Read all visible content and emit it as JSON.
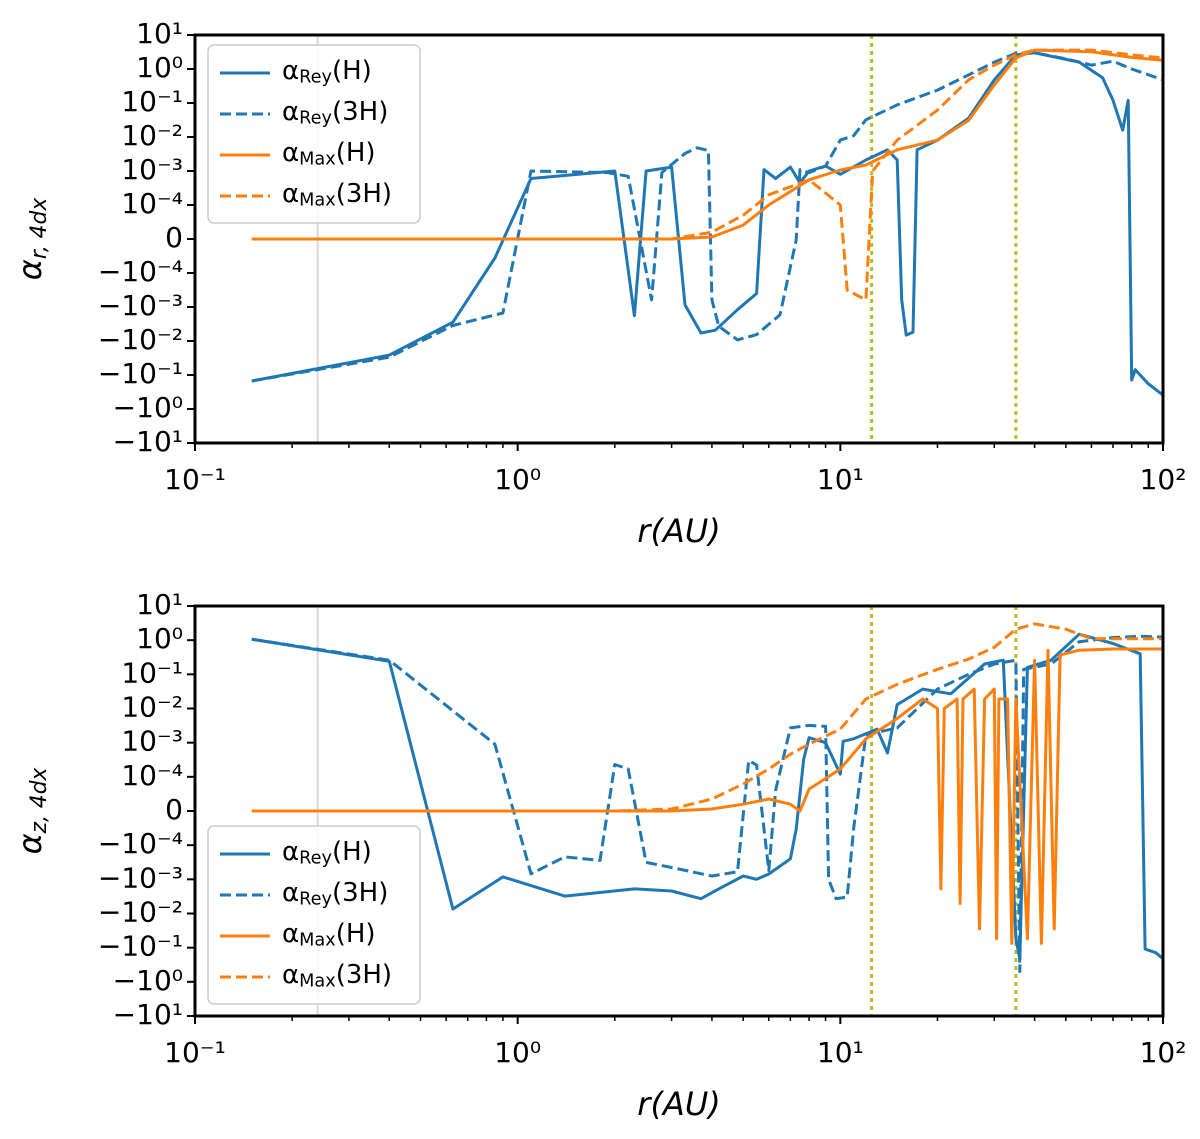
{
  "chart_data": [
    {
      "type": "line",
      "xlabel": "r(AU)",
      "ylabel": "αr, 4dx",
      "xscale": "log",
      "yscale": "symlog",
      "linthresh": 0.0001,
      "xlim": [
        0.1,
        100
      ],
      "ylim": [
        -10,
        10
      ],
      "xticks": [
        {
          "value": 0.1,
          "label": "10⁻¹"
        },
        {
          "value": 1,
          "label": "10⁰"
        },
        {
          "value": 10,
          "label": "10¹"
        },
        {
          "value": 100,
          "label": "10²"
        }
      ],
      "yticks": [
        {
          "value": 10,
          "label": "10¹"
        },
        {
          "value": 1,
          "label": "10⁰"
        },
        {
          "value": 0.1,
          "label": "10⁻¹"
        },
        {
          "value": 0.01,
          "label": "10⁻²"
        },
        {
          "value": 0.001,
          "label": "10⁻³"
        },
        {
          "value": 0.0001,
          "label": "10⁻⁴"
        },
        0,
        {
          "value": -0.0001,
          "label": "−10⁻⁴"
        },
        {
          "value": -0.001,
          "label": "−10⁻³"
        },
        {
          "value": -0.01,
          "label": "−10⁻²"
        },
        {
          "value": -0.1,
          "label": "−10⁻¹"
        },
        {
          "value": -1,
          "label": "−10⁰"
        },
        {
          "value": -10,
          "label": "−10¹"
        }
      ],
      "legend": "upper left",
      "vlines": [
        {
          "x": 0.24,
          "color": "#d9d9d9",
          "dash": false
        },
        {
          "x": 12.5,
          "color": "#bcbd22",
          "dash": true
        },
        {
          "x": 35,
          "color": "#bcbd22",
          "dash": true
        }
      ],
      "series": [
        {
          "name": "αRey(H)",
          "color": "#1f77b4",
          "dash": false,
          "x": [
            0.15,
            0.4,
            0.63,
            0.85,
            1.1,
            2.0,
            2.3,
            2.5,
            3.0,
            3.3,
            3.7,
            4.1,
            4.8,
            5.5,
            5.8,
            6.3,
            7,
            7.5,
            8,
            9,
            10,
            12,
            14,
            15,
            15.5,
            16,
            16.8,
            17.3,
            20,
            25,
            30,
            35,
            40,
            55,
            65,
            70,
            75,
            78,
            80,
            82,
            90,
            100
          ],
          "values": [
            -0.15,
            -0.026,
            -0.0028,
            -5.6e-05,
            0.0006,
            0.001,
            -0.0018,
            0.001,
            0.0013,
            -0.00087,
            -0.0058,
            -0.0048,
            -0.0012,
            -0.0004,
            0.0011,
            0.0006,
            0.0013,
            0.00045,
            0.001,
            0.0014,
            0.0008,
            0.0021,
            0.0042,
            0.0021,
            -0.00062,
            -0.0067,
            -0.0055,
            0.0042,
            0.0081,
            0.036,
            0.48,
            2.6,
            3,
            1.6,
            0.55,
            0.12,
            0.016,
            0.12,
            -0.14,
            -0.07,
            -0.18,
            -0.39
          ]
        },
        {
          "name": "αRey(3H)",
          "color": "#1f77b4",
          "dash": true,
          "x": [
            0.15,
            0.4,
            0.63,
            0.9,
            1.1,
            1.9,
            2.2,
            2.6,
            2.8,
            3.3,
            3.6,
            3.9,
            4.0,
            4.2,
            4.8,
            5.5,
            6.5,
            7.3,
            7.5,
            8,
            9,
            10,
            11,
            12,
            15,
            20,
            25,
            30,
            35,
            40,
            50,
            60,
            70,
            80,
            100
          ],
          "values": [
            -0.15,
            -0.03,
            -0.0035,
            -0.0015,
            0.001,
            0.0009,
            0.0007,
            -0.00062,
            0.0009,
            0.0033,
            0.0048,
            0.004,
            -0.00062,
            -0.0037,
            -0.0093,
            -0.0065,
            -0.0017,
            -3e-06,
            0.0011,
            0.0009,
            0.0014,
            0.0081,
            0.011,
            0.032,
            0.088,
            0.24,
            0.67,
            1.6,
            2.9,
            3,
            2,
            1.3,
            1.7,
            1,
            0.48
          ]
        },
        {
          "name": "αMax(H)",
          "color": "#ff7f0e",
          "dash": false,
          "x": [
            0.15,
            1,
            2,
            3,
            4,
            5,
            6,
            8,
            10,
            12,
            15,
            20,
            25,
            30,
            35,
            40,
            60,
            80,
            100
          ],
          "values": [
            0,
            0,
            0,
            0,
            6e-06,
            4.1e-05,
            0.0001,
            0.00055,
            0.00107,
            0.0015,
            0.0042,
            0.0081,
            0.031,
            0.34,
            2.1,
            3.6,
            3.2,
            2.2,
            1.8
          ]
        },
        {
          "name": "αMax(3H)",
          "color": "#ff7f0e",
          "dash": true,
          "x": [
            0.15,
            1,
            2,
            3,
            4,
            5,
            6,
            8,
            10,
            10.5,
            11,
            12,
            12.6,
            15,
            20,
            25,
            30,
            35,
            40,
            60,
            80,
            100
          ],
          "values": [
            0,
            0,
            0,
            0,
            2e-05,
            7e-05,
            0.0002,
            0.00055,
            0.0001,
            -0.00032,
            -0.0004,
            -0.00062,
            0.001,
            0.0081,
            0.062,
            0.48,
            1.3,
            2.6,
            3.6,
            3.6,
            2.6,
            2.1
          ]
        }
      ]
    },
    {
      "type": "line",
      "xlabel": "r(AU)",
      "ylabel": "αz, 4dx",
      "xscale": "log",
      "yscale": "symlog",
      "linthresh": 0.0001,
      "xlim": [
        0.1,
        100
      ],
      "ylim": [
        -10,
        10
      ],
      "xticks": [
        {
          "value": 0.1,
          "label": "10⁻¹"
        },
        {
          "value": 1,
          "label": "10⁰"
        },
        {
          "value": 10,
          "label": "10¹"
        },
        {
          "value": 100,
          "label": "10²"
        }
      ],
      "yticks": [
        {
          "value": 10,
          "label": "10¹"
        },
        {
          "value": 1,
          "label": "10⁰"
        },
        {
          "value": 0.1,
          "label": "10⁻¹"
        },
        {
          "value": 0.01,
          "label": "10⁻²"
        },
        {
          "value": 0.001,
          "label": "10⁻³"
        },
        {
          "value": 0.0001,
          "label": "10⁻⁴"
        },
        0,
        {
          "value": -0.0001,
          "label": "−10⁻⁴"
        },
        {
          "value": -0.001,
          "label": "−10⁻³"
        },
        {
          "value": -0.01,
          "label": "−10⁻²"
        },
        {
          "value": -0.1,
          "label": "−10⁻¹"
        },
        {
          "value": -1,
          "label": "−10⁰"
        },
        {
          "value": -10,
          "label": "−10¹"
        }
      ],
      "legend": "lower left",
      "vlines": [
        {
          "x": 0.24,
          "color": "#d9d9d9",
          "dash": false
        },
        {
          "x": 12.5,
          "color": "#bcbd22",
          "dash": true
        },
        {
          "x": 35,
          "color": "#bcbd22",
          "dash": true
        }
      ],
      "series": [
        {
          "name": "αRey(H)",
          "color": "#1f77b4",
          "dash": false,
          "x": [
            0.15,
            0.4,
            0.63,
            0.9,
            1.4,
            2.3,
            3,
            3.7,
            4.2,
            5,
            5.5,
            6,
            7,
            7.3,
            7.7,
            8,
            9,
            10,
            10.2,
            11,
            13,
            14,
            15,
            18,
            22,
            28,
            32,
            35,
            36,
            38,
            45,
            55,
            70,
            85,
            88,
            95,
            100
          ],
          "values": [
            1.07,
            0.24,
            -0.0074,
            -0.00085,
            -0.0031,
            -0.0019,
            -0.0022,
            -0.0037,
            -0.0019,
            -0.0008,
            -0.001,
            -0.0007,
            -0.00025,
            -5.3e-05,
            0.00033,
            0.0014,
            0.001,
            0.00012,
            0.0011,
            0.0013,
            0.0025,
            0.0005,
            0.013,
            0.037,
            0.027,
            0.2,
            0.26,
            -0.055,
            -0.21,
            0.16,
            0.26,
            1.5,
            0.8,
            0.4,
            -0.11,
            -0.14,
            -0.21
          ]
        },
        {
          "name": "αRey(3H)",
          "color": "#1f77b4",
          "dash": true,
          "x": [
            0.15,
            0.4,
            0.85,
            1.1,
            1.4,
            1.8,
            2.0,
            2.2,
            2.5,
            3,
            4,
            4.8,
            5.2,
            5.5,
            6,
            6.3,
            7,
            8,
            9,
            9.2,
            9.7,
            10.5,
            11,
            12,
            15,
            20,
            25,
            30,
            35,
            36,
            37,
            45,
            55,
            70,
            85,
            100
          ],
          "values": [
            1.07,
            0.26,
            0.0009,
            -0.00069,
            -0.00022,
            -0.00028,
            0.00023,
            0.00017,
            -0.00032,
            -0.00045,
            -0.0008,
            -0.0006,
            0.0003,
            0.00022,
            -0.00055,
            6e-05,
            0.0027,
            0.0032,
            0.003,
            -0.001,
            -0.0037,
            -0.0033,
            -5e-05,
            0.0017,
            0.0027,
            0.037,
            0.1,
            0.2,
            0.26,
            -0.5,
            0.14,
            0.2,
            0.9,
            1.2,
            1.3,
            1.23
          ]
        },
        {
          "name": "αMax(H)",
          "color": "#ff7f0e",
          "dash": false,
          "x": [
            0.15,
            1,
            2,
            3,
            4,
            5,
            6,
            7,
            7.5,
            8,
            10,
            12,
            15,
            18,
            20,
            20.5,
            21,
            23,
            23.5,
            24,
            26,
            27,
            28,
            30,
            30.5,
            31,
            33,
            34,
            35,
            38,
            40,
            42,
            44,
            46,
            48,
            55,
            70,
            100
          ],
          "values": [
            0,
            0,
            0,
            0,
            6e-06,
            2e-05,
            3.5e-05,
            2e-05,
            0,
            6.4e-05,
            0.00017,
            0.0013,
            0.0051,
            0.019,
            0.01,
            -0.0019,
            0.01,
            0.019,
            -0.0051,
            0.019,
            0.037,
            -0.028,
            0.019,
            0.037,
            -0.055,
            0.019,
            0.019,
            -0.075,
            0.019,
            -0.055,
            0.26,
            -0.075,
            0.51,
            -0.028,
            0.37,
            0.51,
            0.55,
            0.55
          ]
        },
        {
          "name": "αMax(3H)",
          "color": "#ff7f0e",
          "dash": true,
          "x": [
            0.15,
            1,
            2,
            3,
            4,
            5,
            6,
            7,
            8,
            10,
            12,
            15,
            20,
            25,
            30,
            35,
            40,
            50,
            60,
            80,
            100
          ],
          "values": [
            0,
            0,
            0,
            6e-06,
            3.5e-05,
            7.9e-05,
            0.00017,
            0.00046,
            0.00091,
            0.0025,
            0.019,
            0.051,
            0.14,
            0.28,
            0.62,
            2.1,
            3,
            2.1,
            1.1,
            1.1,
            1.1
          ]
        }
      ]
    }
  ]
}
